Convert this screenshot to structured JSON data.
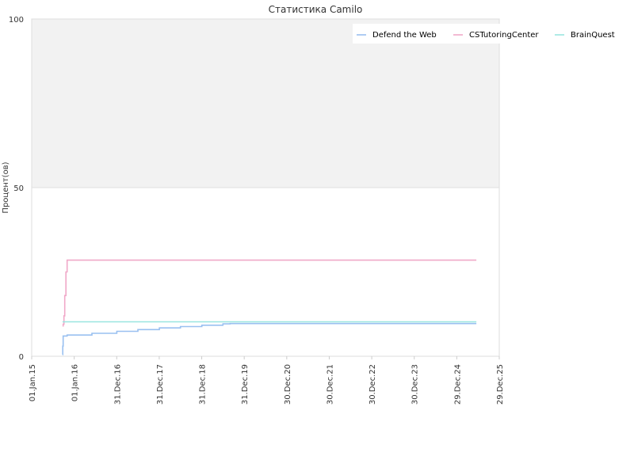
{
  "chart_data": {
    "type": "line",
    "title": "Статистика Camilo",
    "xlabel": "",
    "ylabel": "Процент(ов)",
    "ylim": [
      0,
      100
    ],
    "yticks": [
      "0",
      "50",
      "100"
    ],
    "xlim": [
      "2015-01-01",
      "2025-12-29"
    ],
    "xticks": [
      "01.Jan.15",
      "01.Jan.16",
      "31.Dec.16",
      "31.Dec.17",
      "31.Dec.18",
      "31.Dec.19",
      "30.Dec.20",
      "30.Dec.21",
      "30.Dec.22",
      "30.Dec.23",
      "29.Dec.24",
      "29.Dec.25"
    ],
    "grid": true,
    "legend_position": "top-right",
    "series": [
      {
        "name": "Defend the Web",
        "color": "#99c0f0",
        "points": [
          [
            "2015-09-23",
            0.5
          ],
          [
            "2015-09-25",
            3
          ],
          [
            "2015-09-28",
            6
          ],
          [
            "2015-11-01",
            6.3
          ],
          [
            "2016-06-01",
            6.8
          ],
          [
            "2017-01-01",
            7.4
          ],
          [
            "2017-07-01",
            7.9
          ],
          [
            "2018-01-01",
            8.4
          ],
          [
            "2018-07-01",
            8.8
          ],
          [
            "2019-01-01",
            9.2
          ],
          [
            "2019-07-01",
            9.6
          ],
          [
            "2019-09-01",
            9.7
          ],
          [
            "2025-06-15",
            9.7
          ]
        ]
      },
      {
        "name": "CSTutoringCenter",
        "color": "#f0a8c8",
        "points": [
          [
            "2015-09-23",
            9
          ],
          [
            "2015-09-28",
            9.5
          ],
          [
            "2015-10-05",
            12
          ],
          [
            "2015-10-12",
            18
          ],
          [
            "2015-10-22",
            25
          ],
          [
            "2015-11-01",
            28.5
          ],
          [
            "2025-06-15",
            28.5
          ]
        ]
      },
      {
        "name": "BrainQuest",
        "color": "#99e6e0",
        "points": [
          [
            "2015-09-23",
            10.2
          ],
          [
            "2025-06-15",
            10.2
          ]
        ]
      }
    ]
  }
}
